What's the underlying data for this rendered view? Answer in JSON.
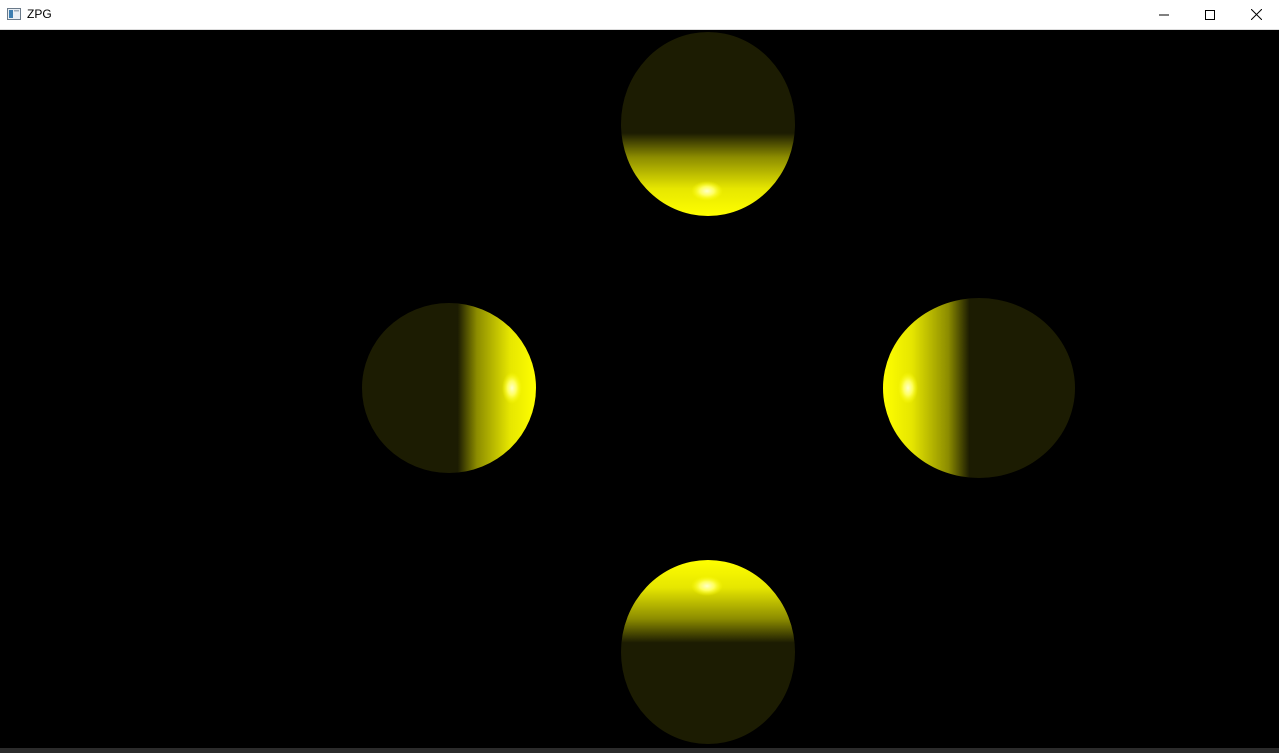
{
  "window": {
    "title": "ZPG",
    "app_icon": "app-window-icon",
    "controls": {
      "minimize_icon": "minimize-icon",
      "maximize_icon": "maximize-icon",
      "close_icon": "close-icon"
    }
  },
  "scene": {
    "background_color": "#000000",
    "sphere_dark_color": "#1c1c02",
    "sphere_lit_color": "#ffff00",
    "highlight_color": "#ffffb0",
    "spheres": [
      {
        "name": "top",
        "lit_side": "bottom"
      },
      {
        "name": "left",
        "lit_side": "right"
      },
      {
        "name": "right",
        "lit_side": "left"
      },
      {
        "name": "bottom",
        "lit_side": "top"
      }
    ]
  }
}
